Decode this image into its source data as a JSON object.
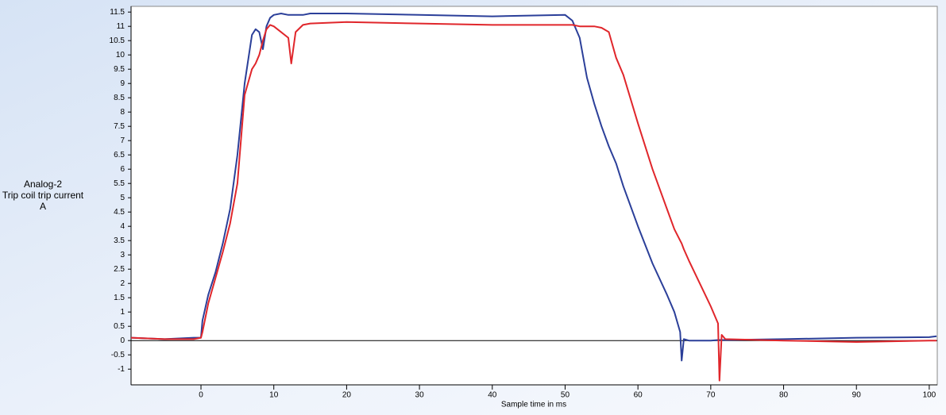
{
  "chart_data": {
    "type": "line",
    "y_label_lines": [
      "Analog-2",
      "Trip coil  trip current",
      "A"
    ],
    "x_label": "Sample time in ms",
    "x": [
      -9.6,
      -5,
      -1,
      0,
      0.2,
      1,
      2,
      3,
      4,
      5,
      6,
      7,
      7.5,
      8,
      8.5,
      9,
      9.5,
      10,
      11,
      12,
      12.4,
      13,
      14,
      15,
      20,
      30,
      40,
      50,
      51,
      52,
      53,
      54,
      55,
      56,
      57,
      58,
      60,
      62,
      64,
      65,
      65.8,
      66,
      66.3,
      67,
      70,
      71,
      71.2,
      71.5,
      72,
      80,
      90,
      100,
      101
    ],
    "series": [
      {
        "color": "#2b3f99",
        "values": [
          0.1,
          0.05,
          0.1,
          0.1,
          0.7,
          1.6,
          2.4,
          3.4,
          4.6,
          6.5,
          9,
          10.7,
          10.9,
          10.8,
          10.2,
          11,
          11.3,
          11.4,
          11.45,
          11.4,
          11.4,
          11.4,
          11.4,
          11.45,
          11.45,
          11.4,
          11.35,
          11.4,
          11.2,
          10.6,
          9.2,
          8.3,
          7.5,
          6.8,
          6.2,
          5.4,
          4,
          2.7,
          1.6,
          1,
          0.3,
          -0.7,
          0.05,
          0,
          0,
          0.02,
          0.02,
          0.02,
          0.02,
          0.05,
          0.1,
          0.12,
          0.15
        ]
      },
      {
        "color": "#e0262b",
        "values": [
          0.1,
          0.05,
          0.05,
          0.1,
          0.3,
          1.3,
          2.2,
          3.1,
          4.1,
          5.5,
          8.6,
          9.5,
          9.7,
          10,
          10.5,
          10.9,
          11.05,
          11,
          10.8,
          10.6,
          9.7,
          10.8,
          11.05,
          11.1,
          11.15,
          11.1,
          11.05,
          11.05,
          11.05,
          11,
          11,
          11,
          10.95,
          10.8,
          9.9,
          9.3,
          7.6,
          6,
          4.6,
          3.9,
          3.5,
          3.4,
          3.2,
          2.8,
          1.2,
          0.6,
          -1.4,
          0.2,
          0.05,
          0,
          -0.05,
          0,
          0
        ]
      }
    ],
    "xlim": [
      -9.6,
      101.1
    ],
    "ylim": [
      -1.55,
      11.7
    ],
    "xticks": [
      0,
      10,
      20,
      30,
      40,
      50,
      60,
      70,
      80,
      90,
      100
    ],
    "yticks": [
      -1,
      -0.5,
      0,
      0.5,
      1,
      1.5,
      2,
      2.5,
      3,
      3.5,
      4,
      4.5,
      5,
      5.5,
      6,
      6.5,
      7,
      7.5,
      8,
      8.5,
      9,
      9.5,
      10,
      10.5,
      11,
      11.5
    ]
  }
}
